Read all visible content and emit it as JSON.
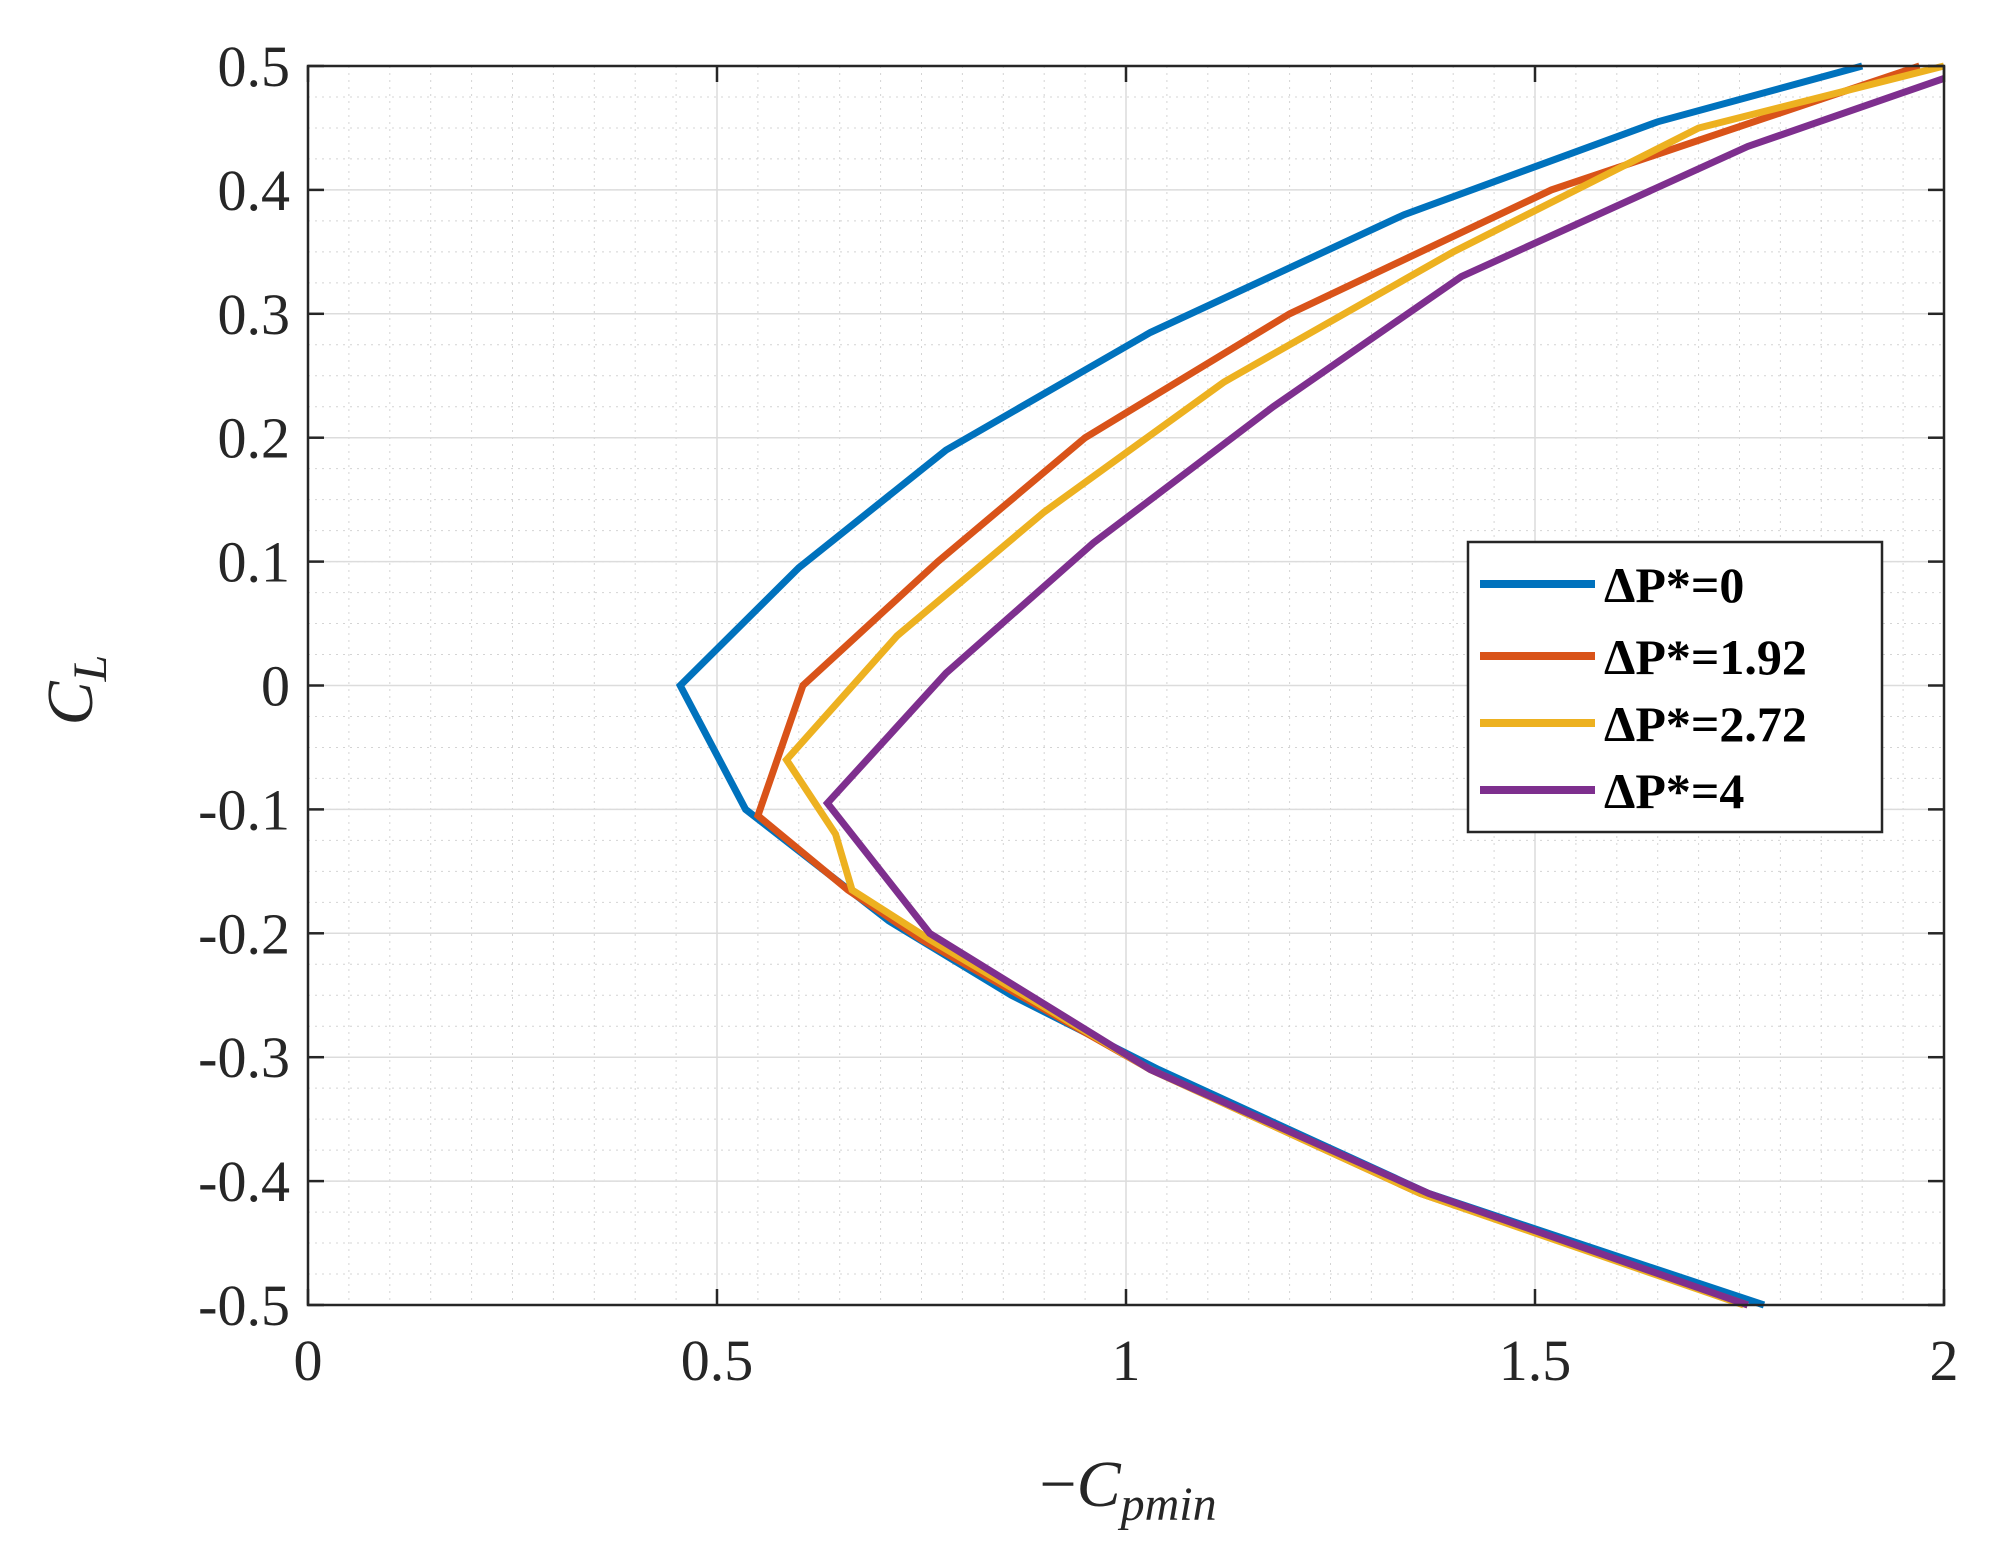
{
  "chart_data": {
    "type": "line",
    "xlabel": {
      "prefix": "−",
      "main": "C",
      "sub": "pmin"
    },
    "ylabel": {
      "main": "C",
      "sub": "L"
    },
    "xlim": [
      0,
      2
    ],
    "ylim": [
      -0.5,
      0.5
    ],
    "xticks": [
      0,
      0.5,
      1,
      1.5,
      2
    ],
    "xtick_labels": [
      "0",
      "0.5",
      "1",
      "1.5",
      "2"
    ],
    "yticks": [
      -0.5,
      -0.4,
      -0.3,
      -0.2,
      -0.1,
      0,
      0.1,
      0.2,
      0.3,
      0.4,
      0.5
    ],
    "ytick_labels": [
      "-0.5",
      "-0.4",
      "-0.3",
      "-0.2",
      "-0.1",
      "0",
      "0.1",
      "0.2",
      "0.3",
      "0.4",
      "0.5"
    ],
    "grid": true,
    "minor_grid": true,
    "legend_position": "right",
    "series": [
      {
        "name": "ΔP*=0",
        "color": "#0072BD",
        "points": [
          [
            1.78,
            -0.5
          ],
          [
            1.37,
            -0.41
          ],
          [
            1.04,
            -0.31
          ],
          [
            0.86,
            -0.25
          ],
          [
            0.71,
            -0.19
          ],
          [
            0.535,
            -0.1
          ],
          [
            0.455,
            0
          ],
          [
            0.6,
            0.095
          ],
          [
            0.78,
            0.19
          ],
          [
            1.03,
            0.285
          ],
          [
            1.34,
            0.38
          ],
          [
            1.65,
            0.455
          ],
          [
            1.9,
            0.5
          ]
        ]
      },
      {
        "name": "ΔP*=1.92",
        "color": "#D95319",
        "points": [
          [
            1.76,
            -0.5
          ],
          [
            1.36,
            -0.41
          ],
          [
            1.03,
            -0.31
          ],
          [
            0.75,
            -0.205
          ],
          [
            0.66,
            -0.165
          ],
          [
            0.55,
            -0.105
          ],
          [
            0.605,
            0
          ],
          [
            0.77,
            0.1
          ],
          [
            0.95,
            0.2
          ],
          [
            1.2,
            0.3
          ],
          [
            1.52,
            0.4
          ],
          [
            1.97,
            0.5
          ]
        ]
      },
      {
        "name": "ΔP*=2.72",
        "color": "#EDB120",
        "points": [
          [
            1.755,
            -0.5
          ],
          [
            1.36,
            -0.41
          ],
          [
            1.03,
            -0.31
          ],
          [
            0.76,
            -0.205
          ],
          [
            0.665,
            -0.165
          ],
          [
            0.645,
            -0.12
          ],
          [
            0.585,
            -0.06
          ],
          [
            0.72,
            0.04
          ],
          [
            0.9,
            0.14
          ],
          [
            1.12,
            0.245
          ],
          [
            1.4,
            0.35
          ],
          [
            1.7,
            0.45
          ],
          [
            2.0,
            0.5
          ]
        ]
      },
      {
        "name": "ΔP*=4",
        "color": "#7E2F8E",
        "points": [
          [
            1.76,
            -0.5
          ],
          [
            1.37,
            -0.41
          ],
          [
            1.03,
            -0.31
          ],
          [
            0.76,
            -0.2
          ],
          [
            0.635,
            -0.095
          ],
          [
            0.78,
            0.01
          ],
          [
            0.96,
            0.115
          ],
          [
            1.18,
            0.225
          ],
          [
            1.41,
            0.33
          ],
          [
            1.76,
            0.435
          ],
          [
            2.0,
            0.49
          ]
        ]
      }
    ]
  }
}
